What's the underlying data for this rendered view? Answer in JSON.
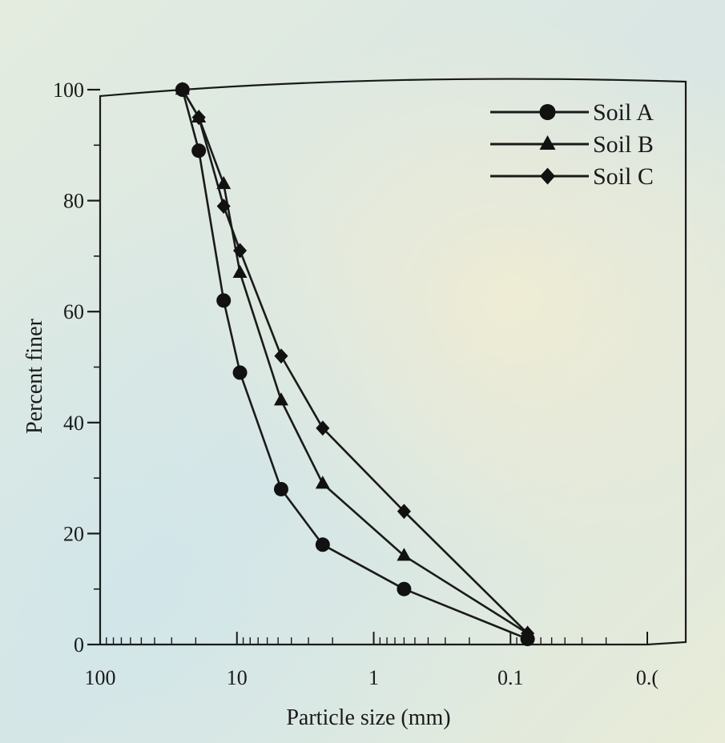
{
  "chart_data": {
    "type": "line",
    "xlabel": "Particle size (mm)",
    "ylabel": "Percent finer",
    "x_scale": "log",
    "x_reversed": true,
    "xlim": [
      100,
      0.01
    ],
    "ylim": [
      0,
      100
    ],
    "x_tick_labels": [
      "100",
      "10",
      "1",
      "0.1",
      "0.("
    ],
    "x_tick_values": [
      100,
      10,
      1,
      0.1,
      0.01
    ],
    "y_ticks": [
      0,
      20,
      40,
      60,
      80,
      100
    ],
    "legend_position": "top-right",
    "series": [
      {
        "name": "Soil A",
        "marker": "circle",
        "color": "#1a1a1a",
        "x": [
          25,
          19,
          12.5,
          9.5,
          4.75,
          2.36,
          0.6,
          0.075
        ],
        "y": [
          100,
          89,
          62,
          49,
          28,
          18,
          10,
          1
        ]
      },
      {
        "name": "Soil B",
        "marker": "triangle",
        "color": "#1a1a1a",
        "x": [
          25,
          19,
          12.5,
          9.5,
          4.75,
          2.36,
          0.6,
          0.075
        ],
        "y": [
          100,
          95,
          83,
          67,
          44,
          29,
          16,
          2
        ]
      },
      {
        "name": "Soil C",
        "marker": "diamond",
        "color": "#1a1a1a",
        "x": [
          25,
          19,
          12.5,
          9.5,
          4.75,
          2.36,
          0.6,
          0.075
        ],
        "y": [
          100,
          95,
          79,
          71,
          52,
          39,
          24,
          2
        ]
      }
    ]
  }
}
